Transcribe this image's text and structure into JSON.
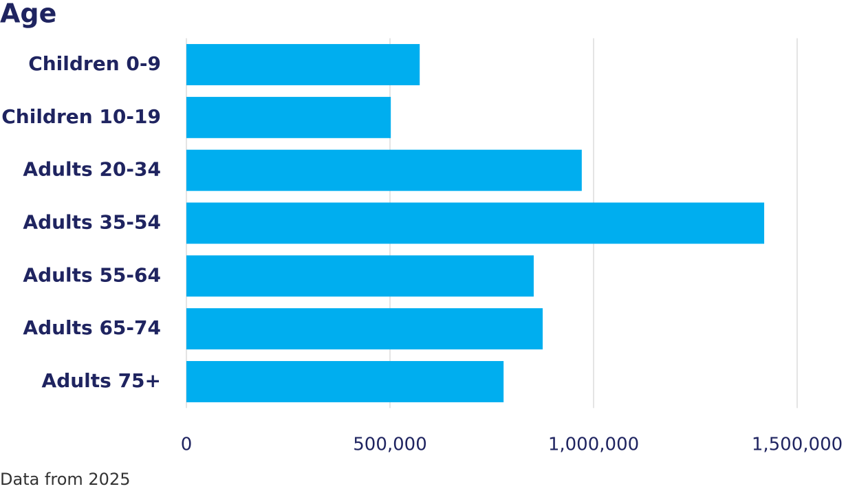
{
  "chart_data": {
    "type": "hbar",
    "title": "Age",
    "source": "Data from 2025",
    "categories": [
      "Children 0-9",
      "Children 10-19",
      "Adults 20-34",
      "Adults 35-54",
      "Adults 55-64",
      "Adults 65-74",
      "Adults 75+"
    ],
    "values": [
      573000,
      502000,
      971000,
      1419000,
      853000,
      875000,
      779000
    ],
    "color": "#00aeef",
    "xlim": [
      0,
      1500000
    ],
    "xticks": [
      0,
      {
        "value": 500000,
        "label": "500,000"
      },
      {
        "value": 1000000,
        "label": "1,000,000"
      },
      {
        "value": 1500000,
        "label": "1,500,000"
      }
    ],
    "grid": true
  }
}
